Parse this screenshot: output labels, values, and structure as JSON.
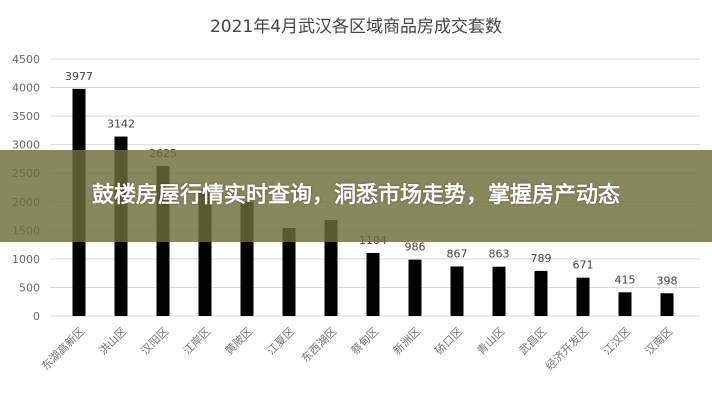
{
  "chart_data": {
    "type": "bar",
    "title": "2021年4月武汉各区域商品房成交套数",
    "categories": [
      "东湖高新区",
      "洪山区",
      "汉阳区",
      "江岸区",
      "黄陂区",
      "江夏区",
      "东西湖区",
      "蔡甸区",
      "新洲区",
      "硚口区",
      "青山区",
      "武昌区",
      "经济开发区",
      "江汉区",
      "汉南区"
    ],
    "values": [
      3977,
      3142,
      2625,
      2210,
      2000,
      1540,
      1680,
      1104,
      986,
      867,
      863,
      789,
      671,
      415,
      398
    ],
    "visible_labels": [
      "3977",
      "3142",
      "2625",
      "",
      "",
      "",
      "",
      "1104",
      "986",
      "867",
      "863",
      "789",
      "671",
      "415",
      "398"
    ],
    "ylim": [
      0,
      4500
    ],
    "yticks": [
      0,
      500,
      1000,
      1500,
      2000,
      2500,
      3000,
      3500,
      4000,
      4500
    ],
    "grid": true,
    "bar_color": "#000000",
    "xlabel": "",
    "ylabel": ""
  },
  "banner": {
    "text": "鼓楼房屋行情实时查询，洞悉市场走势，掌握房产动态",
    "color": "#6e6e3c"
  }
}
